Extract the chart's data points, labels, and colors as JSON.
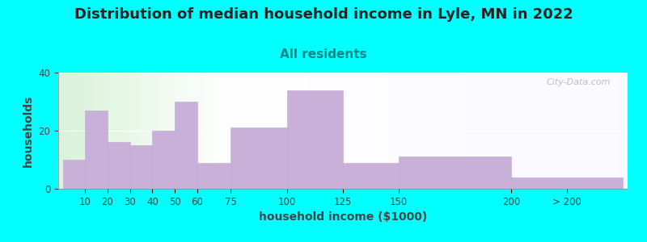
{
  "title": "Distribution of median household income in Lyle, MN in 2022",
  "subtitle": "All residents",
  "xlabel": "household income ($1000)",
  "ylabel": "households",
  "background_color": "#00FFFF",
  "bar_color": "#c8b0d8",
  "bar_edge_color": "#c0a8d0",
  "watermark": "City-Data.com",
  "values": [
    10,
    27,
    16,
    15,
    20,
    30,
    9,
    21,
    34,
    9,
    11,
    4
  ],
  "bar_lefts": [
    0,
    10,
    20,
    30,
    40,
    50,
    60,
    75,
    100,
    125,
    150,
    200
  ],
  "bar_widths": [
    10,
    10,
    10,
    10,
    10,
    10,
    15,
    25,
    25,
    25,
    50,
    50
  ],
  "xtick_labels": [
    "10",
    "20",
    "30",
    "40",
    "50",
    "60",
    "75",
    "100",
    "125",
    "150",
    "200",
    "> 200"
  ],
  "xtick_positions": [
    10,
    20,
    30,
    40,
    50,
    60,
    75,
    100,
    125,
    150,
    200,
    225
  ],
  "ylim": [
    0,
    40
  ],
  "xlim_left": -2,
  "xlim_right": 252,
  "yticks": [
    0,
    20,
    40
  ],
  "title_fontsize": 13,
  "subtitle_fontsize": 11,
  "axis_label_fontsize": 10,
  "tick_fontsize": 8.5,
  "title_color": "#222222",
  "subtitle_color": "#008888",
  "axis_label_color": "#444444"
}
